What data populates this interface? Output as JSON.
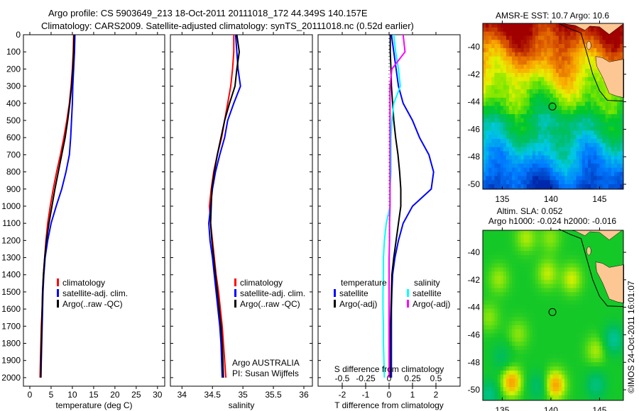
{
  "header": {
    "line1": "Argo profile: CS 5903649_213 18-Oct-2011 20111018_172 44.349S 140.157E",
    "line2": "Climatology: CARS2009. Satellite-adjusted climatology: synTS_20111018.nc (0.52d earlier)"
  },
  "colors": {
    "climatology": "#ff0000",
    "satellite": "#0000ff",
    "argo": "#000000",
    "sal_satellite": "#00ffff",
    "sal_argo": "#ff00ff"
  },
  "chart_data": [
    {
      "type": "line",
      "xlabel": "temperature (deg C)",
      "ylabel": "",
      "xlim": [
        -1.5,
        31.7
      ],
      "ylim": [
        2050,
        0
      ],
      "xticks": [
        "0",
        "5",
        "10",
        "15",
        "20",
        "25",
        "30"
      ],
      "xtick_values": [
        0,
        5,
        10,
        15,
        20,
        25,
        30
      ],
      "yticks": [
        "0",
        "100",
        "200",
        "300",
        "400",
        "500",
        "600",
        "700",
        "800",
        "900",
        "1000",
        "1100",
        "1200",
        "1300",
        "1400",
        "1500",
        "1600",
        "1700",
        "1800",
        "1900",
        "2000"
      ],
      "legend": [
        "climatology",
        "satellite-adj. clim.",
        "Argo(..raw -QC)"
      ],
      "depth": [
        0,
        100,
        200,
        300,
        400,
        500,
        600,
        700,
        800,
        900,
        1000,
        1100,
        1200,
        1300,
        1400,
        1500,
        1600,
        1700,
        1800,
        1900,
        2000
      ],
      "series": [
        {
          "name": "climatology",
          "color": "#ff0000",
          "values": [
            10.3,
            10.2,
            10.0,
            9.7,
            9.3,
            8.7,
            8.0,
            7.2,
            6.3,
            5.5,
            4.8,
            4.2,
            3.8,
            3.5,
            3.2,
            3.0,
            2.9,
            2.7,
            2.6,
            2.5,
            2.4
          ]
        },
        {
          "name": "satellite-adj. clim.",
          "color": "#0000ff",
          "values": [
            10.6,
            10.5,
            10.3,
            10.1,
            10.0,
            9.8,
            9.6,
            9.3,
            8.5,
            7.5,
            6.2,
            5.0,
            4.2,
            3.6,
            3.3,
            3.1,
            3.0,
            2.9,
            2.8,
            2.7,
            2.6
          ]
        },
        {
          "name": "Argo(..raw -QC)",
          "color": "#000000",
          "values": [
            10.4,
            10.3,
            10.1,
            9.8,
            9.4,
            8.9,
            8.3,
            7.5,
            6.7,
            5.9,
            5.2,
            4.5,
            3.9,
            3.5,
            3.2,
            3.0,
            2.9,
            2.8,
            2.7,
            2.6,
            2.6
          ]
        }
      ]
    },
    {
      "type": "line",
      "xlabel": "salinity",
      "xlim": [
        33.81,
        36.14
      ],
      "ylim": [
        2050,
        0
      ],
      "xticks": [
        "34",
        "34.5",
        "35",
        "35.5",
        "36"
      ],
      "xtick_values": [
        34,
        34.5,
        35,
        35.5,
        36
      ],
      "legend": [
        "climatology",
        "satellite-adj. clim.",
        "Argo(..raw -QC)"
      ],
      "annotation": [
        "Argo AUSTRALIA",
        "PI: Susan Wijffels"
      ],
      "depth": [
        0,
        100,
        200,
        300,
        400,
        500,
        600,
        700,
        800,
        900,
        1000,
        1100,
        1200,
        1300,
        1400,
        1500,
        1600,
        1700,
        1800,
        1900,
        2000
      ],
      "series": [
        {
          "name": "climatology",
          "color": "#ff0000",
          "values": [
            34.85,
            34.85,
            34.83,
            34.8,
            34.75,
            34.7,
            34.65,
            34.58,
            34.52,
            34.48,
            34.45,
            34.47,
            34.5,
            34.53,
            34.56,
            34.6,
            34.63,
            34.66,
            34.68,
            34.7,
            34.72
          ]
        },
        {
          "name": "satellite-adj. clim.",
          "color": "#0000ff",
          "values": [
            34.88,
            34.9,
            34.92,
            34.96,
            34.85,
            34.75,
            34.7,
            34.62,
            34.55,
            34.5,
            34.47,
            34.44,
            34.46,
            34.5,
            34.53,
            34.56,
            34.59,
            34.62,
            34.64,
            34.65,
            34.66
          ]
        },
        {
          "name": "Argo(..raw -QC)",
          "color": "#000000",
          "values": [
            34.9,
            34.94,
            34.9,
            34.87,
            34.78,
            34.7,
            34.64,
            34.58,
            34.53,
            34.49,
            34.48,
            34.47,
            34.49,
            34.52,
            34.55,
            34.58,
            34.61,
            34.64,
            34.66,
            34.67,
            34.68
          ]
        }
      ]
    },
    {
      "type": "line",
      "xlabel": "T difference from climatology",
      "x2label": "S difference from climatology",
      "xlim": [
        -3.03,
        3.03
      ],
      "x2lim": [
        -0.7575,
        0.7575
      ],
      "ylim": [
        2050,
        0
      ],
      "xticks": [
        "-2",
        "-1",
        "0",
        "1",
        "2"
      ],
      "xtick_values": [
        -2,
        -1,
        0,
        1,
        2
      ],
      "x2ticks": [
        "-0.5",
        "-0.25",
        "0",
        "0.25",
        "0.5"
      ],
      "x2tick_values": [
        -0.5,
        -0.25,
        0,
        0.25,
        0.5
      ],
      "legend_titles": [
        "temperature",
        "salinity"
      ],
      "legend": [
        "satellite",
        "Argo(-adj)",
        "satellite",
        "Argo(-adj)"
      ],
      "depth": [
        0,
        100,
        200,
        300,
        400,
        500,
        600,
        700,
        800,
        900,
        1000,
        1100,
        1200,
        1300,
        1400,
        1500,
        1600,
        1700,
        1800,
        1900,
        2000
      ],
      "series": [
        {
          "name": "T satellite",
          "axis": "T",
          "color": "#0000ff",
          "values": [
            0.1,
            0.2,
            0.3,
            0.4,
            0.6,
            1.0,
            1.3,
            1.7,
            1.9,
            1.8,
            1.0,
            0.6,
            0.4,
            0.25,
            0.15,
            0.12,
            0.1,
            0.1,
            0.1,
            0.1,
            0.1
          ]
        },
        {
          "name": "T Argo(-adj)",
          "axis": "T",
          "color": "#000000",
          "values": [
            0.05,
            0.05,
            0.08,
            0.1,
            0.15,
            0.2,
            0.28,
            0.38,
            0.45,
            0.5,
            0.5,
            0.4,
            0.3,
            0.2,
            0.12,
            0.1,
            0.08,
            0.06,
            0.05,
            0.05,
            0.05
          ]
        },
        {
          "name": "S satellite",
          "axis": "S",
          "color": "#00ffff",
          "values": [
            0.05,
            0.07,
            0.1,
            0.12,
            0.05,
            0.03,
            0.02,
            0.02,
            0.02,
            0.01,
            0.01,
            -0.03,
            -0.05,
            -0.06,
            -0.06,
            -0.065,
            -0.065,
            -0.06,
            -0.06,
            -0.055,
            -0.05
          ]
        },
        {
          "name": "S Argo(-adj)",
          "axis": "S",
          "color": "#ff00ff",
          "values": [
            0.15,
            0.17,
            0.03,
            0.01,
            0.01,
            0.01,
            0.01,
            0.01,
            0.01,
            0.01,
            0.01,
            0.005,
            0.005,
            0.0,
            0.0,
            0.0,
            0.0,
            0.0,
            0.0,
            0.0,
            0.0
          ]
        }
      ]
    },
    {
      "type": "heatmap",
      "title": "AMSR-E SST: 10.7 Argo: 10.6",
      "xlim": [
        133,
        147.45
      ],
      "ylim": [
        -50.36,
        -38.3
      ],
      "xticks": [
        "135",
        "140",
        "145"
      ],
      "xtick_values": [
        135,
        140,
        145
      ],
      "yticks": [
        "-40",
        "-42",
        "-44",
        "-46",
        "-48",
        "-50"
      ],
      "ytick_values": [
        -40,
        -42,
        -44,
        -46,
        -48,
        -50
      ],
      "argo_position": [
        140.157,
        -44.349
      ]
    },
    {
      "type": "heatmap",
      "title": "Altim. SLA: 0.052",
      "subtitle": "Argo h1000: -0.024 h2000: -0.016",
      "xlim": [
        133,
        147.45
      ],
      "ylim": [
        -50.77,
        -38.4
      ],
      "xticks": [
        "135",
        "140",
        "145"
      ],
      "xtick_values": [
        135,
        140,
        145
      ],
      "yticks": [
        "-40",
        "-42",
        "-44",
        "-46",
        "-48",
        "-50"
      ],
      "ytick_values": [
        -40,
        -42,
        -44,
        -46,
        -48,
        -50
      ],
      "argo_position": [
        140.157,
        -44.349
      ]
    }
  ],
  "watermark": "©IMOS 24-Oct-2011 16:01:07"
}
